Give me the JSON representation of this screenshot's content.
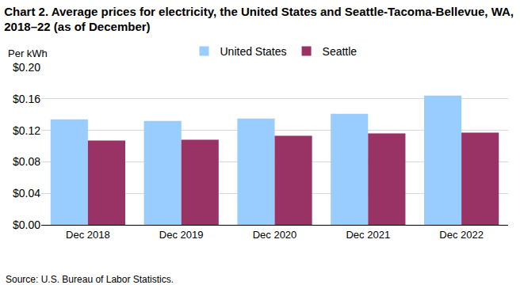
{
  "chart_data": {
    "type": "bar",
    "title": "Chart 2. Average prices for electricity, the United States and Seattle-Tacoma-Bellevue, WA,\n2018–22 (as of December)",
    "y_label": "Per kWh",
    "source": "Source: U.S. Bureau of Labor Statistics.",
    "categories": [
      "Dec 2018",
      "Dec 2019",
      "Dec 2020",
      "Dec 2021",
      "Dec 2022"
    ],
    "series": [
      {
        "name": "United States",
        "color": "#99ccff",
        "values": [
          0.134,
          0.132,
          0.135,
          0.141,
          0.164
        ]
      },
      {
        "name": "Seattle",
        "color": "#993366",
        "values": [
          0.107,
          0.108,
          0.113,
          0.116,
          0.117
        ]
      }
    ],
    "ylim": [
      0,
      0.2
    ],
    "yticks": [
      {
        "value": 0,
        "label": "$0.00"
      },
      {
        "value": 0.04,
        "label": "$0.04"
      },
      {
        "value": 0.08,
        "label": "$0.08"
      },
      {
        "value": 0.12,
        "label": "$0.12"
      },
      {
        "value": 0.16,
        "label": "$0.16"
      },
      {
        "value": 0.2,
        "label": "$0.20"
      }
    ],
    "grid": true,
    "legend": "top"
  }
}
